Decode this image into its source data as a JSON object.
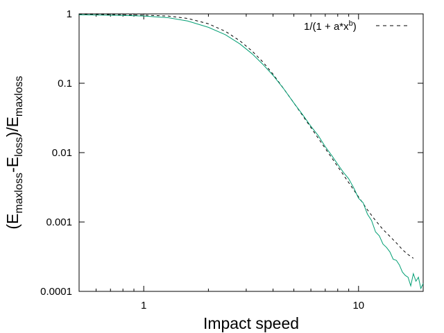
{
  "chart_data": {
    "type": "line",
    "title": "",
    "xlabel": "Impact speed",
    "ylabel": {
      "open": "(E",
      "sub1": "maxloss",
      "mid1": "-E",
      "sub2": "loss",
      "mid2": ")/E",
      "sub3": "maxloss"
    },
    "x_scale": "log",
    "y_scale": "log",
    "xlim": [
      0.5,
      20
    ],
    "ylim": [
      0.0001,
      1
    ],
    "x_ticks": [
      {
        "value": 1,
        "label": "1"
      },
      {
        "value": 10,
        "label": "10"
      }
    ],
    "y_ticks": [
      {
        "value": 1,
        "label": "1"
      },
      {
        "value": 0.1,
        "label": "0.1"
      },
      {
        "value": 0.01,
        "label": "0.01"
      },
      {
        "value": 0.001,
        "label": "0.001"
      },
      {
        "value": 0.0001,
        "label": "0.0001"
      }
    ],
    "grid": false,
    "legend_position": "top-right",
    "series": [
      {
        "label_main": "1/(1 + a*x",
        "label_sup": "b",
        "label_end": ")",
        "color": "#000000",
        "style": "dashed",
        "x": [
          0.5,
          0.8,
          1.0,
          1.3,
          1.6,
          2.0,
          2.4,
          2.8,
          3.2,
          3.6,
          4.0,
          4.5,
          5.0,
          5.5,
          6.0,
          7.0,
          8.0,
          9.0,
          10.0,
          11.0,
          12.0,
          13.0,
          14.0,
          15.0,
          16.0,
          17.0,
          18.0
        ],
        "y": [
          0.99,
          0.97,
          0.96,
          0.93,
          0.86,
          0.72,
          0.56,
          0.41,
          0.29,
          0.2,
          0.135,
          0.082,
          0.052,
          0.034,
          0.023,
          0.0115,
          0.0063,
          0.0037,
          0.0023,
          0.0015,
          0.00105,
          0.00078,
          0.00062,
          0.0005,
          0.0004,
          0.00034,
          0.0003
        ]
      },
      {
        "color": "#009e73",
        "style": "solid",
        "x": [
          0.5,
          0.8,
          1.0,
          1.3,
          1.6,
          2.0,
          2.4,
          2.8,
          3.2,
          3.6,
          4.0,
          4.5,
          5.0,
          5.5,
          6.0,
          6.5,
          7.0,
          7.5,
          8.0,
          8.5,
          9.0,
          9.5,
          10.0,
          10.5,
          11.0,
          11.5,
          12.0,
          12.5,
          13.0,
          13.5,
          14.0,
          14.5,
          15.0,
          15.5,
          16.0,
          16.5,
          17.0,
          17.5,
          18.0,
          18.5,
          19.0,
          19.5,
          20.0
        ],
        "y": [
          0.97,
          0.95,
          0.93,
          0.88,
          0.79,
          0.64,
          0.5,
          0.37,
          0.265,
          0.185,
          0.13,
          0.082,
          0.052,
          0.035,
          0.024,
          0.0175,
          0.0122,
          0.0091,
          0.0068,
          0.0052,
          0.0042,
          0.0031,
          0.0022,
          0.0019,
          0.0013,
          0.00105,
          0.00072,
          0.00063,
          0.00048,
          0.00043,
          0.00037,
          0.00029,
          0.00028,
          0.00024,
          0.00019,
          0.00017,
          0.00016,
          0.00012,
          0.00018,
          0.00014,
          0.00016,
          0.00011,
          0.00013
        ]
      }
    ]
  }
}
